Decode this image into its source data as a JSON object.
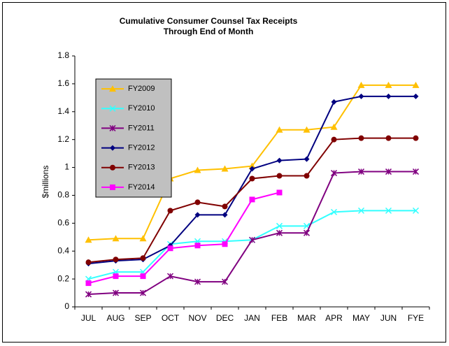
{
  "chart_data": {
    "type": "line",
    "title": [
      "Cumulative Consumer Counsel Tax Receipts",
      "Through End of Month"
    ],
    "y_label": "$millions",
    "categories": [
      "JUL",
      "AUG",
      "SEP",
      "OCT",
      "NOV",
      "DEC",
      "JAN",
      "FEB",
      "MAR",
      "APR",
      "MAY",
      "JUN",
      "FYE"
    ],
    "ylim": [
      0,
      1.8
    ],
    "yticks": [
      0,
      0.2,
      0.4,
      0.6,
      0.8,
      1,
      1.2,
      1.4,
      1.6,
      1.8
    ],
    "legend": "upper left",
    "series": [
      {
        "name": "FY2009",
        "color": "#ffc000",
        "marker": "triangle",
        "values": [
          0.48,
          0.49,
          0.49,
          0.92,
          0.98,
          0.99,
          1.01,
          1.27,
          1.27,
          1.29,
          1.59,
          1.59,
          1.59
        ]
      },
      {
        "name": "FY2010",
        "color": "#33ffff",
        "marker": "x",
        "values": [
          0.2,
          0.25,
          0.25,
          0.45,
          0.47,
          0.47,
          0.48,
          0.58,
          0.58,
          0.68,
          0.69,
          0.69,
          0.69
        ]
      },
      {
        "name": "FY2011",
        "color": "#800080",
        "marker": "asterisk",
        "values": [
          0.09,
          0.1,
          0.1,
          0.22,
          0.18,
          0.18,
          0.48,
          0.53,
          0.53,
          0.96,
          0.97,
          0.97,
          0.97
        ]
      },
      {
        "name": "FY2012",
        "color": "#000080",
        "marker": "diamond",
        "values": [
          0.31,
          0.33,
          0.34,
          0.44,
          0.66,
          0.66,
          0.99,
          1.05,
          1.06,
          1.47,
          1.51,
          1.51,
          1.51
        ]
      },
      {
        "name": "FY2013",
        "color": "#800000",
        "marker": "circle",
        "values": [
          0.32,
          0.34,
          0.35,
          0.69,
          0.75,
          0.72,
          0.92,
          0.94,
          0.94,
          1.2,
          1.21,
          1.21,
          1.21
        ]
      },
      {
        "name": "FY2014",
        "color": "#ff00ff",
        "marker": "square",
        "values": [
          0.17,
          0.22,
          0.22,
          0.42,
          0.44,
          0.45,
          0.77,
          0.82,
          null,
          null,
          null,
          null,
          null
        ]
      }
    ]
  }
}
